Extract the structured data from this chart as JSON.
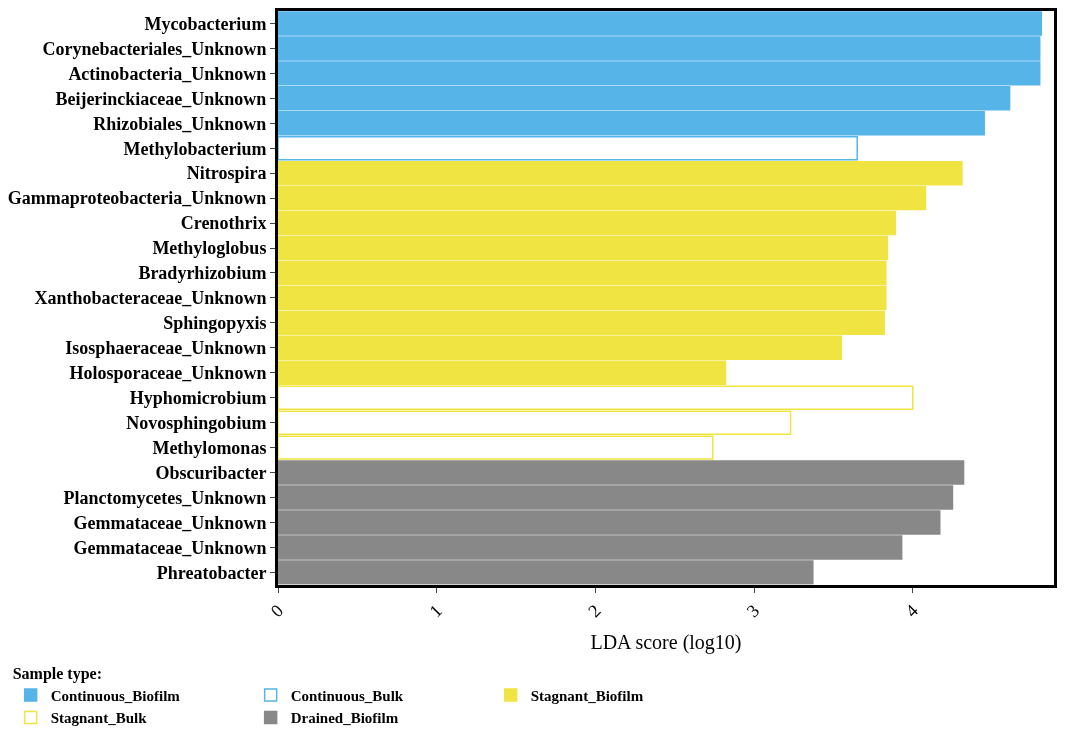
{
  "chart_data": {
    "type": "bar",
    "orientation": "horizontal",
    "xlabel": "LDA score (log10)",
    "legend_title": "Sample type:",
    "legend": "bottom",
    "categories": [
      "Mycobacterium",
      "Corynebacteriales_Unknown",
      "Actinobacteria_Unknown",
      "Beijerinckiaceae_Unknown",
      "Rhizobiales_Unknown",
      "Methylobacterium",
      "Nitrospira",
      "Gammaproteobacteria_Unknown",
      "Crenothrix",
      "Methyloglobus",
      "Bradyrhizobium",
      "Xanthobacteraceae_Unknown",
      "Sphingopyxis",
      "Isosphaeraceae_Unknown",
      "Holosporaceae_Unknown",
      "Hyphomicrobium",
      "Novosphingobium",
      "Methylomonas",
      "Obscuribacter",
      "Planctomycetes_Unknown",
      "Gemmataceae_Unknown",
      "Gemmataceae_Unknown",
      "Phreatobacter"
    ],
    "xlim": [
      0,
      4.89
    ],
    "xticks": [
      0,
      1,
      2,
      3,
      4
    ],
    "series": [
      {
        "name": "Continuous_Biofilm",
        "color": "#56b4e9",
        "values": [
          4.81,
          4.8,
          4.8,
          4.61,
          4.45,
          null,
          null,
          null,
          null,
          null,
          null,
          null,
          null,
          null,
          null,
          null,
          null,
          null,
          null,
          null,
          null,
          null,
          null
        ]
      },
      {
        "name": "Continuous_Bulk",
        "color": "#56b4e9",
        "line_style": "solid",
        "values": [
          null,
          null,
          null,
          null,
          null,
          3.65,
          null,
          null,
          null,
          null,
          null,
          null,
          null,
          null,
          null,
          null,
          null,
          null,
          null,
          null,
          null,
          null,
          null
        ]
      },
      {
        "name": "Stagnant_Biofilm",
        "color": "#f0e442",
        "values": [
          null,
          null,
          null,
          null,
          null,
          null,
          4.31,
          4.08,
          3.89,
          3.84,
          3.83,
          3.83,
          3.82,
          3.55,
          2.82,
          null,
          null,
          null,
          null,
          null,
          null,
          null,
          null
        ]
      },
      {
        "name": "Stagnant_Bulk",
        "color": "#f0e442",
        "line_style": "solid",
        "values": [
          null,
          null,
          null,
          null,
          null,
          null,
          null,
          null,
          null,
          null,
          null,
          null,
          null,
          null,
          null,
          4.0,
          3.23,
          2.74,
          null,
          null,
          null,
          null,
          null
        ]
      },
      {
        "name": "Drained_Biofilm",
        "color": "#888888",
        "values": [
          null,
          null,
          null,
          null,
          null,
          null,
          null,
          null,
          null,
          null,
          null,
          null,
          null,
          null,
          null,
          null,
          null,
          null,
          4.32,
          4.25,
          4.17,
          3.93,
          3.37
        ]
      }
    ]
  }
}
